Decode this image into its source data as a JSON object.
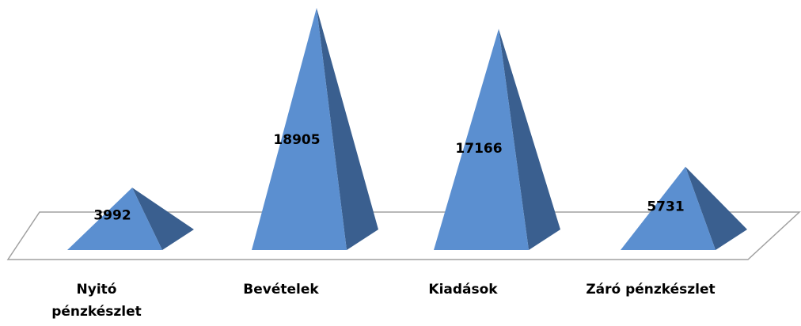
{
  "chart_data": {
    "type": "pyramid",
    "categories": [
      "Nyitó pénzkészlet",
      "Bevételek",
      "Kiadások",
      "Záró pénzkészlet"
    ],
    "values": [
      3992,
      18905,
      17166,
      5731
    ],
    "color": "#5b8fd0"
  }
}
